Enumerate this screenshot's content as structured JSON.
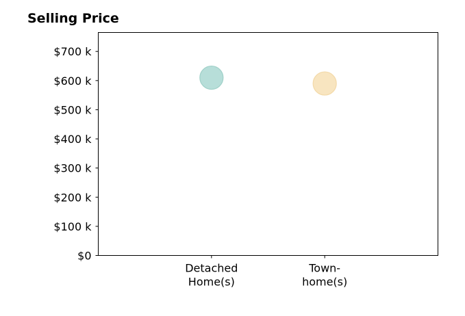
{
  "chart_data": {
    "type": "scatter",
    "title": "Selling Price",
    "xlabel": "",
    "ylabel": "",
    "categories": [
      [
        "Detached",
        "Home(s)"
      ],
      [
        "Town-",
        "home(s)"
      ]
    ],
    "values": [
      610000,
      590000
    ],
    "colors": [
      "#b7ded9",
      "#f8e5c0"
    ],
    "stroke_colors": [
      "#9fd0c8",
      "#f3d9a8"
    ],
    "ylim": [
      0,
      765000
    ],
    "yticks": [
      0,
      100000,
      200000,
      300000,
      400000,
      500000,
      600000,
      700000
    ],
    "ytick_labels": [
      "$0",
      "$100 k",
      "$200 k",
      "$300 k",
      "$400 k",
      "$500 k",
      "$600 k",
      "$700 k"
    ],
    "grid": false,
    "legend": "none"
  }
}
